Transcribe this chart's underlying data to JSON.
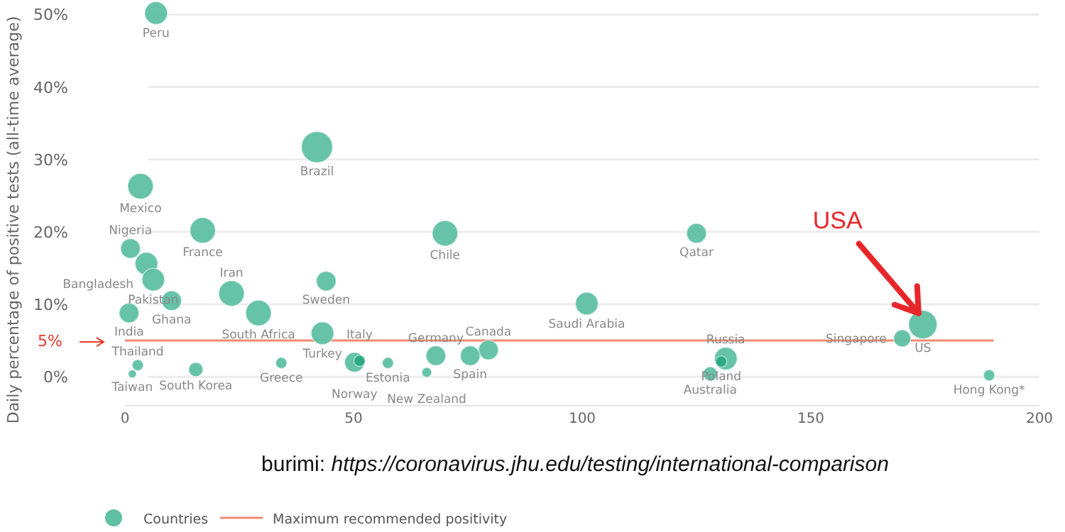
{
  "chart_data": {
    "type": "bubble",
    "ylabel": "Daily percentage of positive tests (all-time average)",
    "xlim": [
      0,
      200
    ],
    "xticks": [
      0,
      50,
      100,
      150,
      200
    ],
    "ylim": [
      -4,
      52
    ],
    "yticks": [
      {
        "value": 0,
        "label": "0%"
      },
      {
        "value": 10,
        "label": "10%"
      },
      {
        "value": 20,
        "label": "20%"
      },
      {
        "value": 30,
        "label": "30%"
      },
      {
        "value": 40,
        "label": "40%"
      },
      {
        "value": 50,
        "label": "50%"
      }
    ],
    "grid": "y",
    "legend": "bottom",
    "series": [
      {
        "name": "Countries",
        "color": "#5fc0a3",
        "x": [
          6.8,
          42,
          3.4,
          17,
          70,
          1.2,
          4.7,
          6.2,
          10.2,
          23.3,
          29.2,
          44,
          0.9,
          43.2,
          101,
          125,
          174.5,
          170,
          189,
          128,
          131.4,
          130.4,
          79.5,
          75.5,
          68,
          66,
          57.5,
          50.2,
          51.3,
          34.2,
          15.5,
          2.8,
          1.6
        ],
        "values": [
          50.2,
          31.7,
          26.3,
          20.2,
          19.8,
          17.7,
          15.6,
          13.4,
          10.5,
          11.5,
          8.8,
          13.2,
          8.8,
          6.0,
          10.1,
          19.8,
          7.2,
          5.3,
          0.2,
          0.4,
          2.5,
          2.1,
          3.7,
          2.9,
          2.9,
          0.6,
          1.9,
          2.0,
          2.2,
          1.9,
          1.0,
          1.6,
          0.4
        ],
        "sizes": [
          0.53,
          1,
          0.67,
          0.67,
          0.67,
          0.4,
          0.53,
          0.53,
          0.4,
          0.67,
          0.67,
          0.4,
          0.4,
          0.53,
          0.53,
          0.4,
          0.83,
          0.3,
          0.13,
          0.21,
          0.53,
          0.13,
          0.4,
          0.4,
          0.4,
          0.1,
          0.13,
          0.4,
          0.13,
          0.13,
          0.21,
          0.13,
          0.07
        ],
        "colors": [
          "#5fc0a3",
          "#5fc0a3",
          "#5fc0a3",
          "#5fc0a3",
          "#5fc0a3",
          "#5fc0a3",
          "#5fc0a3",
          "#5fc0a3",
          "#5fc0a3",
          "#5fc0a3",
          "#5fc0a3",
          "#5fc0a3",
          "#5fc0a3",
          "#5fc0a3",
          "#5fc0a3",
          "#5fc0a3",
          "#5fc0a3",
          "#5fc0a3",
          "#5fc0a3",
          "#5fc0a3",
          "#5fc0a3",
          "#2aa882",
          "#5fc0a3",
          "#5fc0a3",
          "#5fc0a3",
          "#5fc0a3",
          "#5fc0a3",
          "#5fc0a3",
          "#2aa882",
          "#5fc0a3",
          "#5fc0a3",
          "#5fc0a3",
          "#5fc0a3"
        ]
      }
    ],
    "ref_lines": [
      {
        "axis": "y",
        "value": 5,
        "label": "Maximum recommended positivity",
        "color": "#f08a70"
      }
    ],
    "annotations": [
      {
        "text": "Peru",
        "x": 6.8,
        "y": 50.2
      },
      {
        "text": "Brazil",
        "x": 42,
        "y": 31.7
      },
      {
        "text": "Mexico",
        "x": 3.4,
        "y": 26.3
      },
      {
        "text": "France",
        "x": 17,
        "y": 20.2
      },
      {
        "text": "Chile",
        "x": 70,
        "y": 19.8
      },
      {
        "text": "Nigeria",
        "x": 1.2,
        "y": 17.7
      },
      {
        "text": "Bangladesh",
        "x": 4.7,
        "y": 15.6
      },
      {
        "text": "Pakistan",
        "x": 6.2,
        "y": 13.4
      },
      {
        "text": "Ghana",
        "x": 10.2,
        "y": 10.5
      },
      {
        "text": "Iran",
        "x": 23.3,
        "y": 11.5
      },
      {
        "text": "South Africa",
        "x": 29.2,
        "y": 8.8
      },
      {
        "text": "Sweden",
        "x": 44,
        "y": 13.2
      },
      {
        "text": "India",
        "x": 0.9,
        "y": 8.8
      },
      {
        "text": "Turkey",
        "x": 43.2,
        "y": 6.0
      },
      {
        "text": "Saudi Arabia",
        "x": 101,
        "y": 10.1
      },
      {
        "text": "Qatar",
        "x": 125,
        "y": 19.8
      },
      {
        "text": "US",
        "x": 174.5,
        "y": 7.2
      },
      {
        "text": "Singapore",
        "x": 170,
        "y": 5.3
      },
      {
        "text": "Hong Kong*",
        "x": 189,
        "y": 0.2
      },
      {
        "text": "Australia",
        "x": 128,
        "y": 0.4
      },
      {
        "text": "Russia",
        "x": 131.4,
        "y": 2.5
      },
      {
        "text": "Poland",
        "x": 130.4,
        "y": 2.1
      },
      {
        "text": "Canada",
        "x": 79.5,
        "y": 3.7
      },
      {
        "text": "Spain",
        "x": 75.5,
        "y": 2.9
      },
      {
        "text": "Germany",
        "x": 68,
        "y": 2.9
      },
      {
        "text": "New Zealand",
        "x": 66,
        "y": 0.6
      },
      {
        "text": "Estonia",
        "x": 57.5,
        "y": 1.9
      },
      {
        "text": "Norway",
        "x": 50.2,
        "y": 2.0
      },
      {
        "text": "Italy",
        "x": 51.3,
        "y": 2.2
      },
      {
        "text": "Greece",
        "x": 34.2,
        "y": 1.9
      },
      {
        "text": "South Korea",
        "x": 15.5,
        "y": 1.0
      },
      {
        "text": "Thailand",
        "x": 2.8,
        "y": 1.6
      },
      {
        "text": "Taiwan",
        "x": 1.6,
        "y": 0.4
      },
      {
        "text": "USA",
        "x": 174.5,
        "y": 7.2
      },
      "5%",
      "burimi: https://coronavirus.jhu.edu/testing/international-comparison"
    ]
  }
}
